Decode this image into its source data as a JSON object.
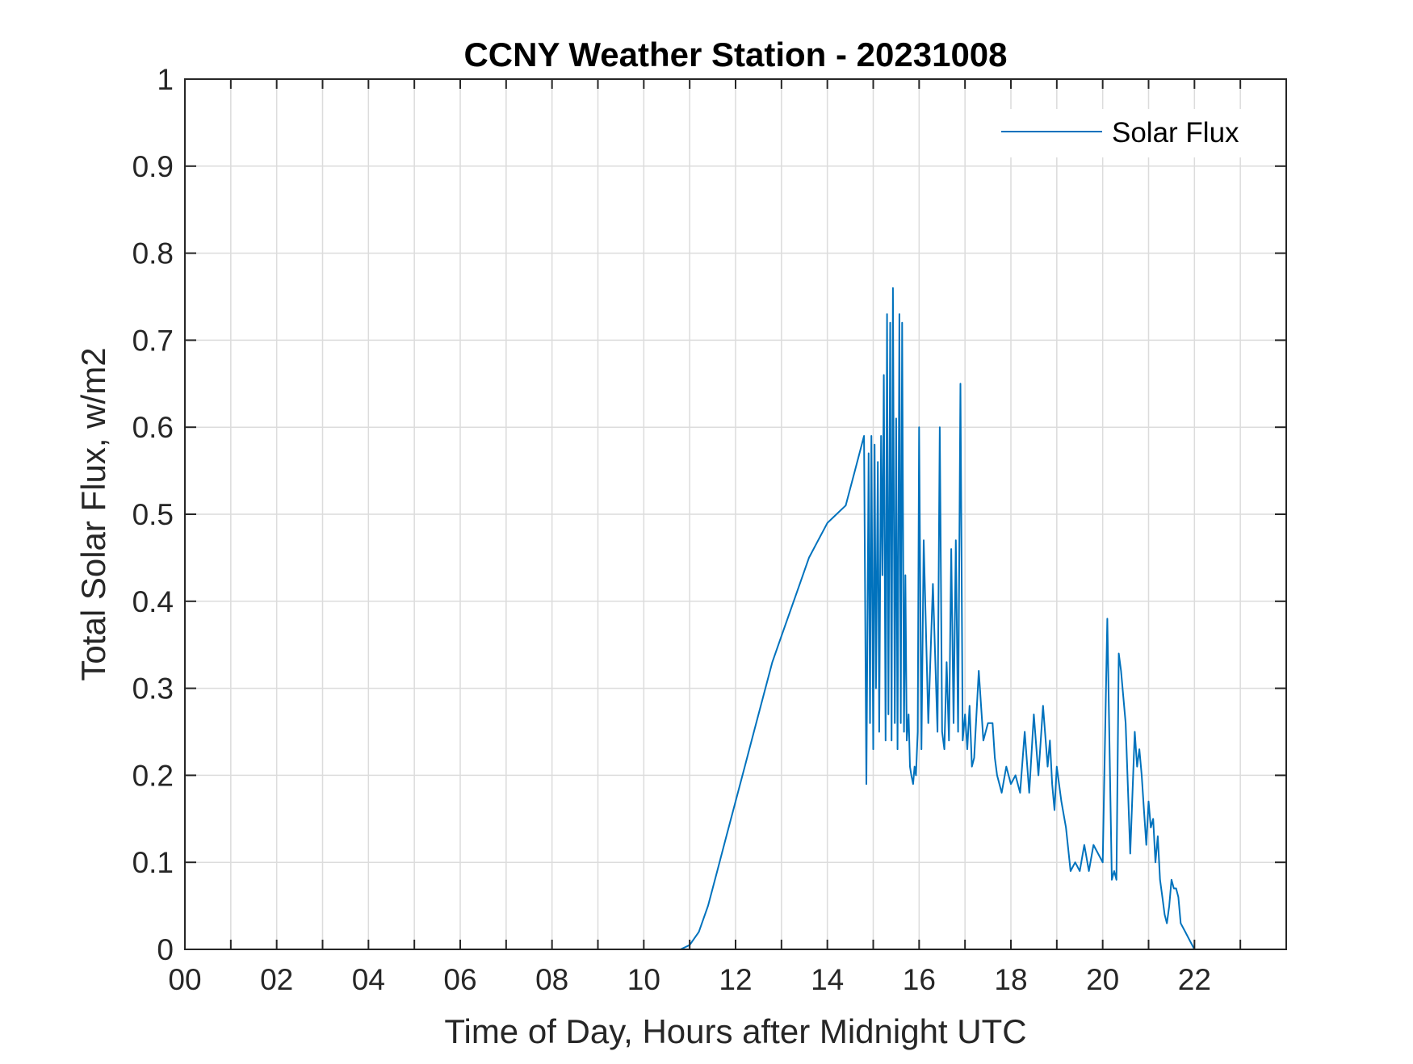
{
  "chart_data": {
    "type": "line",
    "title": "CCNY Weather Station - 20231008",
    "xlabel": "Time of Day, Hours after Midnight UTC",
    "ylabel": "Total Solar Flux, w/m2",
    "xlim": [
      0,
      24
    ],
    "ylim": [
      0,
      1
    ],
    "grid": true,
    "xticks": [
      0,
      2,
      4,
      6,
      8,
      10,
      12,
      14,
      16,
      18,
      20,
      22
    ],
    "xtick_labels": [
      "00",
      "02",
      "04",
      "06",
      "08",
      "10",
      "12",
      "14",
      "16",
      "18",
      "20",
      "22"
    ],
    "yticks": [
      0,
      0.1,
      0.2,
      0.3,
      0.4,
      0.5,
      0.6,
      0.7,
      0.8,
      0.9,
      1
    ],
    "ytick_labels": [
      "0",
      "0.1",
      "0.2",
      "0.3",
      "0.4",
      "0.5",
      "0.6",
      "0.7",
      "0.8",
      "0.9",
      "1"
    ],
    "legend": {
      "position": "top-right",
      "entries": [
        "Solar Flux"
      ]
    },
    "series": [
      {
        "name": "Solar Flux",
        "color": "#0072BD",
        "x": [
          0,
          10.8,
          11.0,
          11.2,
          11.4,
          11.6,
          11.8,
          12.0,
          12.2,
          12.4,
          12.6,
          12.8,
          13.0,
          13.2,
          13.4,
          13.6,
          13.8,
          14.0,
          14.2,
          14.4,
          14.6,
          14.8,
          14.85,
          14.9,
          14.93,
          14.96,
          15.0,
          15.03,
          15.06,
          15.1,
          15.13,
          15.17,
          15.2,
          15.23,
          15.27,
          15.3,
          15.33,
          15.37,
          15.4,
          15.43,
          15.47,
          15.5,
          15.53,
          15.57,
          15.6,
          15.63,
          15.67,
          15.7,
          15.73,
          15.77,
          15.8,
          15.83,
          15.87,
          15.9,
          15.93,
          15.97,
          16.0,
          16.05,
          16.1,
          16.2,
          16.3,
          16.4,
          16.45,
          16.5,
          16.55,
          16.6,
          16.65,
          16.7,
          16.75,
          16.8,
          16.85,
          16.9,
          16.95,
          17.0,
          17.05,
          17.1,
          17.15,
          17.2,
          17.3,
          17.4,
          17.5,
          17.6,
          17.65,
          17.7,
          17.8,
          17.9,
          18.0,
          18.1,
          18.2,
          18.3,
          18.4,
          18.5,
          18.6,
          18.7,
          18.8,
          18.85,
          18.9,
          18.95,
          19.0,
          19.1,
          19.2,
          19.3,
          19.4,
          19.5,
          19.6,
          19.7,
          19.8,
          19.9,
          20.0,
          20.1,
          20.2,
          20.25,
          20.3,
          20.35,
          20.4,
          20.5,
          20.6,
          20.7,
          20.75,
          20.8,
          20.85,
          20.9,
          20.95,
          21.0,
          21.05,
          21.1,
          21.15,
          21.2,
          21.25,
          21.3,
          21.35,
          21.4,
          21.45,
          21.5,
          21.55,
          21.6,
          21.65,
          21.7,
          21.8,
          21.9,
          22.0,
          22.1,
          22.2,
          22.4,
          22.6,
          22.8,
          23.0,
          24.0
        ],
        "values": [
          0,
          0,
          0.005,
          0.02,
          0.05,
          0.09,
          0.13,
          0.17,
          0.21,
          0.25,
          0.29,
          0.33,
          0.36,
          0.39,
          0.42,
          0.45,
          0.47,
          0.49,
          0.5,
          0.51,
          0.55,
          0.59,
          0.19,
          0.57,
          0.26,
          0.59,
          0.23,
          0.58,
          0.3,
          0.56,
          0.25,
          0.59,
          0.43,
          0.66,
          0.24,
          0.73,
          0.27,
          0.72,
          0.24,
          0.76,
          0.26,
          0.61,
          0.23,
          0.73,
          0.26,
          0.72,
          0.25,
          0.43,
          0.24,
          0.27,
          0.21,
          0.2,
          0.19,
          0.21,
          0.2,
          0.25,
          0.6,
          0.23,
          0.47,
          0.26,
          0.42,
          0.25,
          0.6,
          0.25,
          0.23,
          0.33,
          0.24,
          0.46,
          0.26,
          0.47,
          0.25,
          0.65,
          0.24,
          0.27,
          0.23,
          0.28,
          0.21,
          0.22,
          0.32,
          0.24,
          0.26,
          0.26,
          0.22,
          0.2,
          0.18,
          0.21,
          0.19,
          0.2,
          0.18,
          0.25,
          0.18,
          0.27,
          0.2,
          0.28,
          0.21,
          0.24,
          0.19,
          0.16,
          0.21,
          0.17,
          0.14,
          0.09,
          0.1,
          0.09,
          0.12,
          0.09,
          0.12,
          0.11,
          0.1,
          0.38,
          0.08,
          0.09,
          0.08,
          0.34,
          0.32,
          0.26,
          0.11,
          0.25,
          0.21,
          0.23,
          0.2,
          0.16,
          0.12,
          0.17,
          0.14,
          0.15,
          0.1,
          0.13,
          0.08,
          0.06,
          0.04,
          0.03,
          0.05,
          0.08,
          0.07,
          0.07,
          0.06,
          0.03,
          0.02,
          0.01,
          0.0,
          0.0,
          0.0,
          0.0,
          0.0,
          0.0,
          0.0,
          0.0
        ]
      }
    ]
  }
}
